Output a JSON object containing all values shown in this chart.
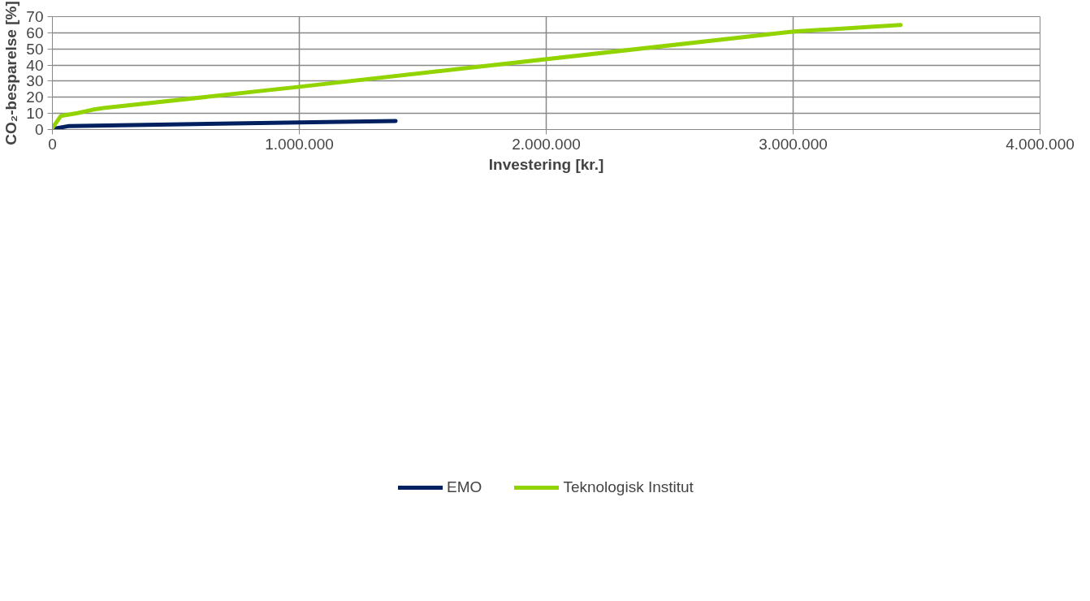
{
  "chart_data": {
    "type": "line",
    "xlabel": "Investering [kr.]",
    "ylabel": "CO₂-besparelse [%]",
    "xlim": [
      0,
      4000000
    ],
    "xticks": [
      {
        "value": 0,
        "label": "0"
      },
      {
        "value": 1000000,
        "label": "1.000.000"
      },
      {
        "value": 2000000,
        "label": "2.000.000"
      },
      {
        "value": 3000000,
        "label": "3.000.000"
      },
      {
        "value": 4000000,
        "label": "4.000.000"
      }
    ],
    "ylim": [
      0,
      70
    ],
    "yticks": [
      0,
      10,
      20,
      30,
      40,
      50,
      60,
      70
    ],
    "grid": true,
    "legend": "bottom",
    "marker": "none",
    "line_style": "solid",
    "series": [
      {
        "name": "EMO",
        "color": "#002060",
        "x": [
          7000,
          68000,
          1000000,
          1390000
        ],
        "values": [
          0.5,
          2.2,
          4.4,
          5.3
        ]
      },
      {
        "name": "Teknologisk Institut",
        "color": "#92d400",
        "x": [
          0,
          34000,
          102000,
          163000,
          207000,
          1000000,
          3003000,
          3435000
        ],
        "values": [
          1.0,
          8.4,
          10.2,
          12.3,
          13.3,
          26.5,
          60.8,
          64.8
        ]
      }
    ]
  }
}
